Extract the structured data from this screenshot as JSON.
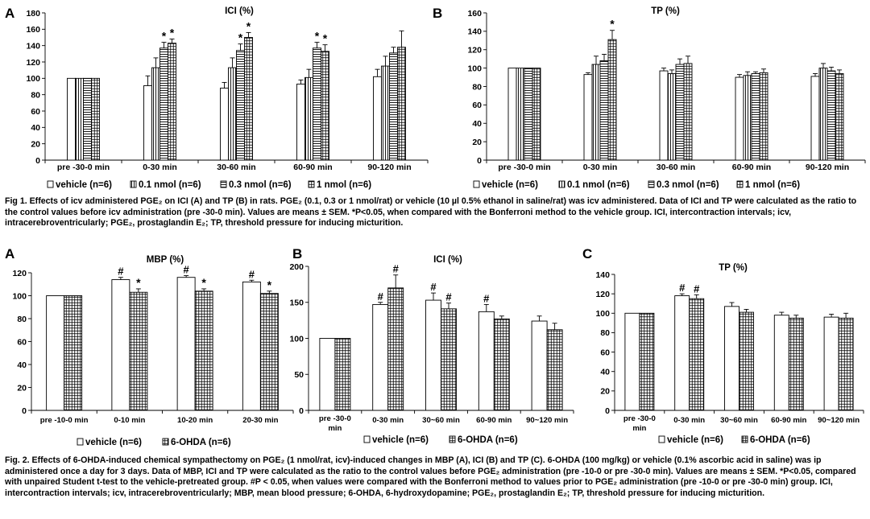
{
  "figure1": {
    "caption": "Fig 1. Effects of icv administered PGE₂ on ICI (A) and TP (B) in rats. PGE₂ (0.1, 0.3 or 1 nmol/rat) or vehicle (10 µl 0.5% ethanol in saline/rat) was icv administered. Data of ICI and TP were calculated as the ratio to the control values before icv administration (pre -30-0 min). Values are means ± SEM. *P<0.05, when compared with the Bonferroni method to the vehicle group. ICI, intercontraction intervals; icv, intracerebroventricularly; PGE₂, prostaglandin E₂; TP, threshold pressure for inducing micturition.",
    "legend": [
      "vehicle (n=6)",
      "0.1 nmol (n=6)",
      "0.3 nmol (n=6)",
      "1 nmol (n=6)"
    ]
  },
  "figure2": {
    "caption": "Fig. 2. Effects of 6-OHDA-induced chemical sympathectomy on PGE₂ (1 nmol/rat, icv)-induced changes in MBP (A), ICI (B) and TP (C). 6-OHDA (100 mg/kg) or vehicle (0.1% ascorbic acid in saline) was ip administered once a day for 3 days. Data of MBP, ICI and TP were calculated as the ratio to the control values before PGE₂ administration (pre -10-0 or pre -30-0 min). Values are means ± SEM. *P<0.05, compared with unpaired Student t-test to the vehicle-pretreated group. #P < 0.05, when values were compared with the Bonferroni method to values prior to PGE₂ administration (pre -10-0 or pre -30-0 min) group. ICI, intercontraction intervals; icv, intracerebroventricularly; MBP, mean blood pressure; 6-OHDA, 6-hydroxydopamine; PGE₂, prostaglandin E₂; TP, threshold pressure for inducing micturition.",
    "legend": [
      "vehicle (n=6)",
      "6-OHDA (n=6)"
    ]
  },
  "chart_data": [
    {
      "id": "fig1A",
      "panel_label": "A",
      "type": "bar",
      "title": "ICI (%)",
      "ylim": [
        0,
        180
      ],
      "yticks": [
        0,
        20,
        40,
        60,
        80,
        100,
        120,
        140,
        160,
        180
      ],
      "categories": [
        "pre -30-0 min",
        "0-30 min",
        "30-60 min",
        "60-90 min",
        "90-120 min"
      ],
      "series": [
        {
          "name": "vehicle (n=6)",
          "pattern": "white",
          "values": [
            100,
            91,
            88,
            93,
            102
          ],
          "errors": [
            0,
            12,
            7,
            5,
            9
          ],
          "sig": [
            "",
            "",
            "",
            "",
            ""
          ]
        },
        {
          "name": "0.1 nmol (n=6)",
          "pattern": "vlines",
          "values": [
            100,
            113,
            113,
            101,
            115
          ],
          "errors": [
            0,
            12,
            12,
            10,
            12
          ],
          "sig": [
            "",
            "",
            "",
            "",
            ""
          ]
        },
        {
          "name": "0.3 nmol (n=6)",
          "pattern": "hlines",
          "values": [
            100,
            137,
            134,
            137,
            131
          ],
          "errors": [
            0,
            7,
            8,
            7,
            7
          ],
          "sig": [
            "",
            "*",
            "*",
            "*",
            ""
          ]
        },
        {
          "name": "1 nmol (n=6)",
          "pattern": "grid",
          "values": [
            100,
            143,
            150,
            133,
            138
          ],
          "errors": [
            0,
            5,
            6,
            8,
            20
          ],
          "sig": [
            "",
            "*",
            "*",
            "*",
            ""
          ]
        }
      ]
    },
    {
      "id": "fig1B",
      "panel_label": "B",
      "type": "bar",
      "title": "TP (%)",
      "ylim": [
        0,
        160
      ],
      "yticks": [
        0,
        20,
        40,
        60,
        80,
        100,
        120,
        140,
        160
      ],
      "categories": [
        "pre -30-0 min",
        "0-30 min",
        "30-60 min",
        "60-90 min",
        "90-120 min"
      ],
      "series": [
        {
          "name": "vehicle (n=6)",
          "pattern": "white",
          "values": [
            100,
            93,
            97,
            90,
            91
          ],
          "errors": [
            0,
            2,
            3,
            3,
            3
          ],
          "sig": [
            "",
            "",
            "",
            "",
            ""
          ]
        },
        {
          "name": "0.1 nmol (n=6)",
          "pattern": "vlines",
          "values": [
            100,
            104,
            94,
            92,
            100
          ],
          "errors": [
            0,
            9,
            4,
            4,
            5
          ],
          "sig": [
            "",
            "",
            "",
            "",
            ""
          ]
        },
        {
          "name": "0.3 nmol (n=6)",
          "pattern": "hlines",
          "values": [
            100,
            108,
            104,
            94,
            97
          ],
          "errors": [
            0,
            7,
            6,
            2,
            4
          ],
          "sig": [
            "",
            "",
            "",
            "",
            ""
          ]
        },
        {
          "name": "1 nmol (n=6)",
          "pattern": "grid",
          "values": [
            100,
            131,
            105,
            95,
            94
          ],
          "errors": [
            0,
            10,
            8,
            4,
            4
          ],
          "sig": [
            "",
            "*",
            "",
            "",
            ""
          ]
        }
      ]
    },
    {
      "id": "fig2A",
      "panel_label": "A",
      "type": "bar",
      "title": "MBP (%)",
      "ylim": [
        0,
        120
      ],
      "yticks": [
        0,
        20,
        40,
        60,
        80,
        100,
        120
      ],
      "categories": [
        "pre -10-0 min",
        "0-10 min",
        "10-20 min",
        "20-30 min"
      ],
      "series": [
        {
          "name": "vehicle (n=6)",
          "pattern": "white",
          "values": [
            100,
            114,
            116,
            112
          ],
          "errors": [
            0,
            2,
            1.5,
            1.5
          ],
          "sig": [
            "",
            "#",
            "#",
            "#"
          ]
        },
        {
          "name": "6-OHDA (n=6)",
          "pattern": "grid",
          "values": [
            100,
            103,
            104,
            102
          ],
          "errors": [
            0,
            3,
            2,
            2
          ],
          "sig": [
            "",
            "*",
            "*",
            "*"
          ]
        }
      ]
    },
    {
      "id": "fig2B",
      "panel_label": "B",
      "type": "bar",
      "title": "ICI (%)",
      "ylim": [
        0,
        200
      ],
      "yticks": [
        0,
        50,
        100,
        150,
        200
      ],
      "categories": [
        "pre -30-0 min",
        "0-30 min",
        "30~60 min",
        "60-90 min",
        "90~120 min"
      ],
      "series": [
        {
          "name": "vehicle (n=6)",
          "pattern": "white",
          "values": [
            100,
            147,
            153,
            137,
            124
          ],
          "errors": [
            0,
            3,
            10,
            10,
            7
          ],
          "sig": [
            "",
            "#",
            "#",
            "#",
            ""
          ]
        },
        {
          "name": "6-OHDA (n=6)",
          "pattern": "grid",
          "values": [
            100,
            170,
            141,
            127,
            112
          ],
          "errors": [
            0,
            18,
            8,
            4,
            9
          ],
          "sig": [
            "",
            "#",
            "#",
            "",
            ""
          ]
        }
      ]
    },
    {
      "id": "fig2C",
      "panel_label": "C",
      "type": "bar",
      "title": "TP (%)",
      "ylim": [
        0,
        140
      ],
      "yticks": [
        0,
        20,
        40,
        60,
        80,
        100,
        120,
        140
      ],
      "categories": [
        "pre -30-0 min",
        "0-30 min",
        "30~60 min",
        "60-90 min",
        "90~120 min"
      ],
      "series": [
        {
          "name": "vehicle (n=6)",
          "pattern": "white",
          "values": [
            100,
            118,
            107,
            98,
            96
          ],
          "errors": [
            0,
            2,
            4,
            3,
            3
          ],
          "sig": [
            "",
            "#",
            "",
            "",
            ""
          ]
        },
        {
          "name": "6-OHDA (n=6)",
          "pattern": "grid",
          "values": [
            100,
            115,
            101,
            95,
            95
          ],
          "errors": [
            0,
            4,
            3,
            3,
            5
          ],
          "sig": [
            "",
            "#",
            "",
            "",
            ""
          ]
        }
      ]
    }
  ]
}
